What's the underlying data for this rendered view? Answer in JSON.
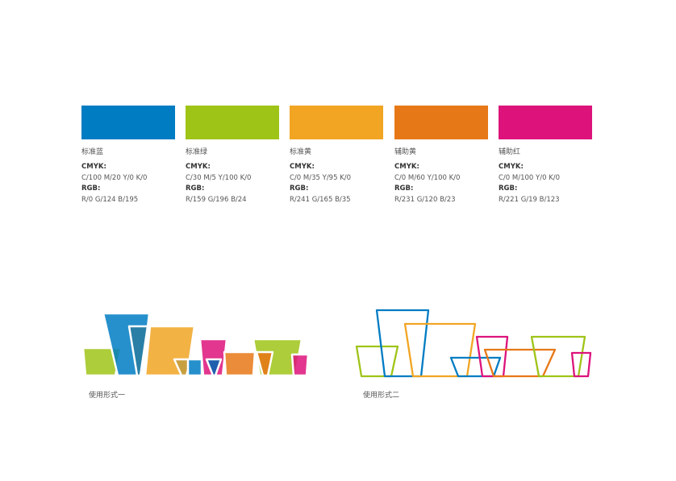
{
  "palette": [
    {
      "name": "标准蓝",
      "cmyk_label": "CMYK:",
      "cmyk": "C/100  M/20  Y/0  K/0",
      "rgb_label": "RGB:",
      "rgb": "R/0  G/124  B/195",
      "color": "#007cc3"
    },
    {
      "name": "标准绿",
      "cmyk_label": "CMYK:",
      "cmyk": "C/30  M/5  Y/100  K/0",
      "rgb_label": "RGB:",
      "rgb": "R/159  G/196  B/24",
      "color": "#9fc418"
    },
    {
      "name": "标准黄",
      "cmyk_label": "CMYK:",
      "cmyk": "C/0  M/35  Y/95  K/0",
      "rgb_label": "RGB:",
      "rgb": "R/241  G/165  B/35",
      "color": "#f1a523"
    },
    {
      "name": "辅助黄",
      "cmyk_label": "CMYK:",
      "cmyk": "C/0  M/60  Y/100  K/0",
      "rgb_label": "RGB:",
      "rgb": "R/231  G/120  B/23",
      "color": "#e77817"
    },
    {
      "name": "辅助红",
      "cmyk_label": "CMYK:",
      "cmyk": "C/0  M/100  Y/0  K/0",
      "rgb_label": "RGB:",
      "rgb": "R/221  G/19  B/123",
      "color": "#dd137b"
    }
  ],
  "usage": {
    "form_one": "使用形式一",
    "form_two": "使用形式二"
  }
}
